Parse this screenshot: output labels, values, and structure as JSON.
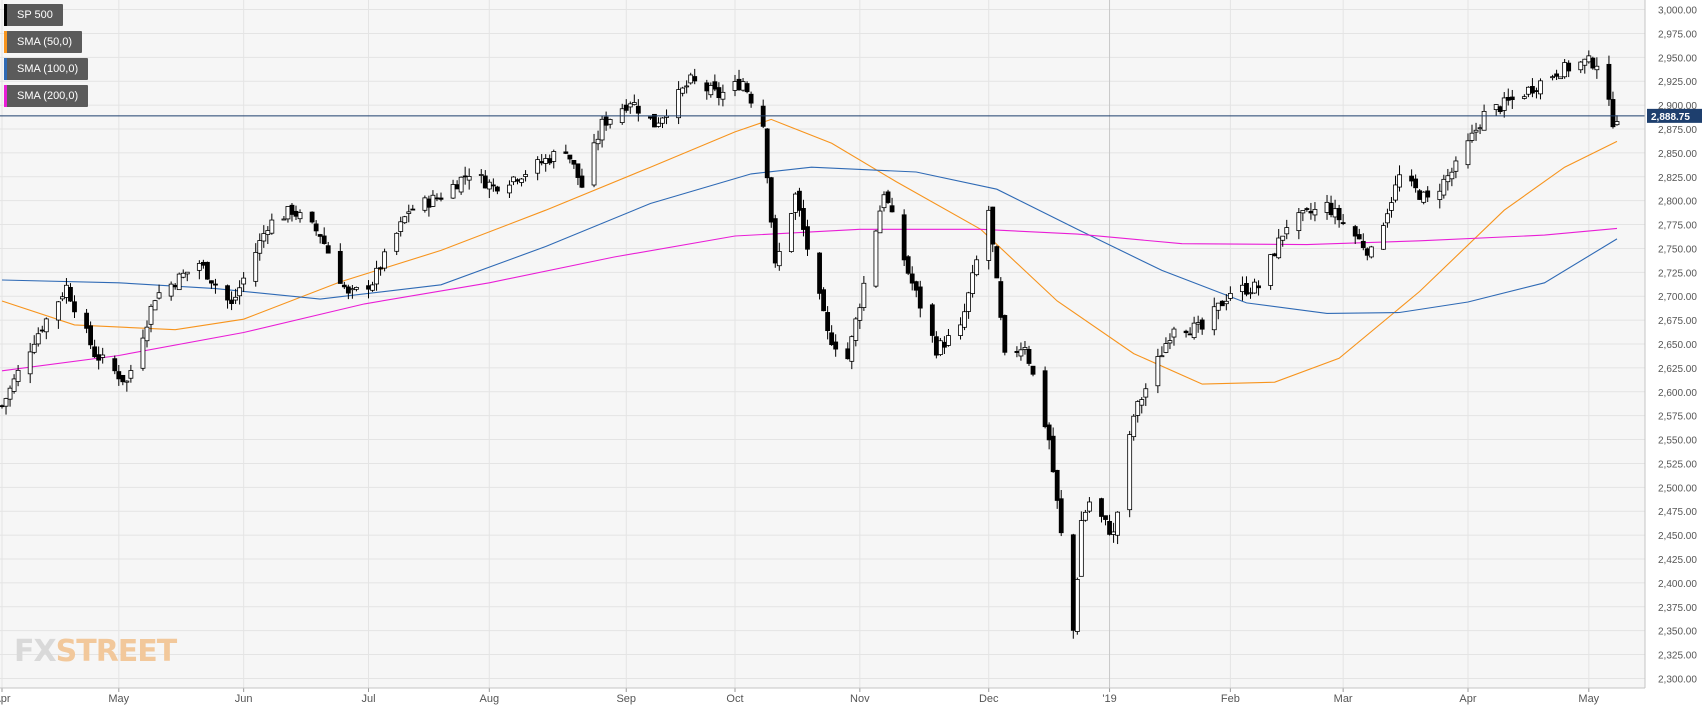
{
  "chart_data": {
    "type": "candlestick",
    "instrument": "SP 500",
    "last_price_label": "2,888.75",
    "last_price": 2888.75,
    "y_axis": {
      "min": 2290,
      "max": 3010,
      "ticks": [
        3000,
        2975,
        2950,
        2925,
        2900,
        2875,
        2850,
        2825,
        2800,
        2775,
        2750,
        2725,
        2700,
        2675,
        2650,
        2625,
        2600,
        2575,
        2550,
        2525,
        2500,
        2475,
        2450,
        2425,
        2400,
        2375,
        2350,
        2325,
        2300
      ],
      "tick_labels": [
        "3,000.00",
        "2,975.00",
        "2,950.00",
        "2,925.00",
        "2,900.00",
        "2,875.00",
        "2,850.00",
        "2,825.00",
        "2,800.00",
        "2,775.00",
        "2,750.00",
        "2,725.00",
        "2,700.00",
        "2,675.00",
        "2,650.00",
        "2,625.00",
        "2,600.00",
        "2,575.00",
        "2,550.00",
        "2,525.00",
        "2,500.00",
        "2,475.00",
        "2,450.00",
        "2,425.00",
        "2,400.00",
        "2,375.00",
        "2,350.00",
        "2,325.00",
        "2,300.00"
      ]
    },
    "x_axis": {
      "date_start": "2018-04-02",
      "date_end": "2019-05-08",
      "labels": [
        {
          "label": "Apr",
          "date": "2018-04-02"
        },
        {
          "label": "May",
          "date": "2018-05-01"
        },
        {
          "label": "Jun",
          "date": "2018-06-01"
        },
        {
          "label": "Jul",
          "date": "2018-07-02"
        },
        {
          "label": "Aug",
          "date": "2018-08-01"
        },
        {
          "label": "Sep",
          "date": "2018-09-04"
        },
        {
          "label": "Oct",
          "date": "2018-10-01"
        },
        {
          "label": "Nov",
          "date": "2018-11-01"
        },
        {
          "label": "Dec",
          "date": "2018-12-03"
        },
        {
          "label": "'19",
          "date": "2019-01-02"
        },
        {
          "label": "Feb",
          "date": "2019-02-01"
        },
        {
          "label": "Mar",
          "date": "2019-03-01"
        },
        {
          "label": "Apr",
          "date": "2019-04-01"
        },
        {
          "label": "May",
          "date": "2019-05-01"
        }
      ],
      "year_separator": "2019-01-02"
    },
    "price_path": [
      [
        "2018-04-02",
        2585
      ],
      [
        "2018-04-10",
        2655
      ],
      [
        "2018-04-18",
        2710
      ],
      [
        "2018-04-25",
        2640
      ],
      [
        "2018-05-03",
        2610
      ],
      [
        "2018-05-10",
        2700
      ],
      [
        "2018-05-21",
        2735
      ],
      [
        "2018-05-29",
        2690
      ],
      [
        "2018-06-07",
        2775
      ],
      [
        "2018-06-13",
        2790
      ],
      [
        "2018-06-20",
        2765
      ],
      [
        "2018-06-27",
        2700
      ],
      [
        "2018-07-03",
        2715
      ],
      [
        "2018-07-12",
        2790
      ],
      [
        "2018-07-20",
        2805
      ],
      [
        "2018-07-27",
        2830
      ],
      [
        "2018-08-02",
        2815
      ],
      [
        "2018-08-10",
        2830
      ],
      [
        "2018-08-20",
        2855
      ],
      [
        "2018-08-24",
        2815
      ],
      [
        "2018-08-29",
        2880
      ],
      [
        "2018-09-05",
        2905
      ],
      [
        "2018-09-11",
        2880
      ],
      [
        "2018-09-20",
        2925
      ],
      [
        "2018-09-27",
        2910
      ],
      [
        "2018-10-03",
        2925
      ],
      [
        "2018-10-08",
        2880
      ],
      [
        "2018-10-11",
        2730
      ],
      [
        "2018-10-16",
        2805
      ],
      [
        "2018-10-24",
        2660
      ],
      [
        "2018-10-29",
        2635
      ],
      [
        "2018-11-07",
        2810
      ],
      [
        "2018-11-13",
        2725
      ],
      [
        "2018-11-20",
        2645
      ],
      [
        "2018-11-26",
        2665
      ],
      [
        "2018-12-03",
        2790
      ],
      [
        "2018-12-07",
        2635
      ],
      [
        "2018-12-12",
        2650
      ],
      [
        "2018-12-18",
        2550
      ],
      [
        "2018-12-24",
        2350
      ],
      [
        "2018-12-26",
        2465
      ],
      [
        "2018-12-28",
        2485
      ],
      [
        "2019-01-03",
        2450
      ],
      [
        "2019-01-08",
        2575
      ],
      [
        "2019-01-18",
        2670
      ],
      [
        "2019-01-25",
        2665
      ],
      [
        "2019-02-01",
        2705
      ],
      [
        "2019-02-08",
        2710
      ],
      [
        "2019-02-15",
        2775
      ],
      [
        "2019-02-25",
        2795
      ],
      [
        "2019-03-08",
        2745
      ],
      [
        "2019-03-15",
        2825
      ],
      [
        "2019-03-22",
        2800
      ],
      [
        "2019-03-29",
        2835
      ],
      [
        "2019-04-05",
        2890
      ],
      [
        "2019-04-12",
        2905
      ],
      [
        "2019-04-23",
        2935
      ],
      [
        "2019-04-30",
        2945
      ],
      [
        "2019-05-03",
        2945
      ],
      [
        "2019-05-07",
        2884
      ],
      [
        "2019-05-08",
        2888.75
      ]
    ],
    "series": [
      {
        "name": "SP 500",
        "color": "#000000"
      },
      {
        "name": "SMA (50,0)",
        "color": "#f7941d",
        "values": [
          [
            "2018-04-02",
            2695
          ],
          [
            "2018-04-20",
            2670
          ],
          [
            "2018-05-15",
            2665
          ],
          [
            "2018-06-01",
            2676
          ],
          [
            "2018-06-25",
            2715
          ],
          [
            "2018-07-20",
            2748
          ],
          [
            "2018-08-15",
            2790
          ],
          [
            "2018-09-10",
            2835
          ],
          [
            "2018-10-01",
            2872
          ],
          [
            "2018-10-10",
            2885
          ],
          [
            "2018-10-25",
            2860
          ],
          [
            "2018-11-10",
            2820
          ],
          [
            "2018-12-01",
            2770
          ],
          [
            "2018-12-20",
            2695
          ],
          [
            "2019-01-08",
            2640
          ],
          [
            "2019-01-25",
            2608
          ],
          [
            "2019-02-12",
            2610
          ],
          [
            "2019-02-28",
            2635
          ],
          [
            "2019-03-20",
            2705
          ],
          [
            "2019-04-10",
            2790
          ],
          [
            "2019-04-25",
            2835
          ],
          [
            "2019-05-08",
            2862
          ]
        ]
      },
      {
        "name": "SMA (100,0)",
        "color": "#2f6ab5",
        "values": [
          [
            "2018-04-02",
            2717
          ],
          [
            "2018-05-01",
            2714
          ],
          [
            "2018-05-25",
            2708
          ],
          [
            "2018-06-20",
            2697
          ],
          [
            "2018-07-20",
            2712
          ],
          [
            "2018-08-15",
            2752
          ],
          [
            "2018-09-10",
            2797
          ],
          [
            "2018-10-05",
            2828
          ],
          [
            "2018-10-20",
            2835
          ],
          [
            "2018-11-15",
            2830
          ],
          [
            "2018-12-05",
            2812
          ],
          [
            "2018-12-25",
            2770
          ],
          [
            "2019-01-15",
            2727
          ],
          [
            "2019-02-05",
            2693
          ],
          [
            "2019-02-25",
            2682
          ],
          [
            "2019-03-15",
            2683
          ],
          [
            "2019-04-01",
            2694
          ],
          [
            "2019-04-20",
            2714
          ],
          [
            "2019-05-08",
            2760
          ]
        ]
      },
      {
        "name": "SMA (200,0)",
        "color": "#e91ed6",
        "values": [
          [
            "2018-04-02",
            2622
          ],
          [
            "2018-05-01",
            2638
          ],
          [
            "2018-06-01",
            2662
          ],
          [
            "2018-07-01",
            2692
          ],
          [
            "2018-08-01",
            2714
          ],
          [
            "2018-09-01",
            2741
          ],
          [
            "2018-10-01",
            2763
          ],
          [
            "2018-11-01",
            2770
          ],
          [
            "2018-12-01",
            2770
          ],
          [
            "2018-12-25",
            2765
          ],
          [
            "2019-01-20",
            2755
          ],
          [
            "2019-02-20",
            2754
          ],
          [
            "2019-03-20",
            2758
          ],
          [
            "2019-04-20",
            2764
          ],
          [
            "2019-05-08",
            2771
          ]
        ]
      }
    ],
    "grid": true,
    "legend_position": "top-left"
  },
  "legend": [
    {
      "label": "SP 500",
      "color": "#000000"
    },
    {
      "label": "SMA (50,0)",
      "color": "#f7941d"
    },
    {
      "label": "SMA (100,0)",
      "color": "#2f6ab5"
    },
    {
      "label": "SMA (200,0)",
      "color": "#e91ed6"
    }
  ],
  "watermark": {
    "part1": "FX",
    "part2": "STREET"
  },
  "colors": {
    "background": "#f6f6f6",
    "grid": "#e4e4e4",
    "up_candle": "#ffffff",
    "down_candle": "#000000",
    "last_price_box": "#1e3f6e"
  }
}
